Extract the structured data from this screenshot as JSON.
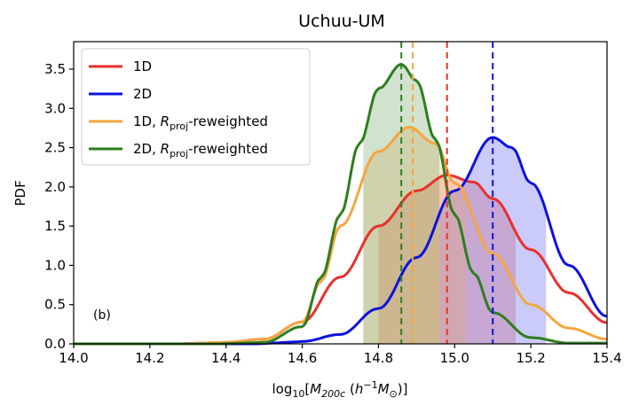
{
  "chart_data": {
    "type": "line",
    "title": "Uchuu-UM",
    "xlabel": "log10[M200c (h^-1 M⊙)]",
    "ylabel": "PDF",
    "xlim": [
      14.0,
      15.4
    ],
    "ylim": [
      0.0,
      3.85
    ],
    "xticks": [
      14.0,
      14.2,
      14.4,
      14.6,
      14.8,
      15.0,
      15.2,
      15.4
    ],
    "xtick_labels": [
      "14.0",
      "14.2",
      "14.4",
      "14.6",
      "14.8",
      "15.0",
      "15.2",
      "15.4"
    ],
    "yticks": [
      0.0,
      0.5,
      1.0,
      1.5,
      2.0,
      2.5,
      3.0,
      3.5
    ],
    "ytick_labels": [
      "0.0",
      "0.5",
      "1.0",
      "1.5",
      "2.0",
      "2.5",
      "3.0",
      "3.5"
    ],
    "annotation": "(b)",
    "legend_position": "top-left",
    "grid": false,
    "series": [
      {
        "name": "1D",
        "color": "#e8312b",
        "x": [
          14.4,
          14.5,
          14.6,
          14.7,
          14.8,
          14.9,
          14.98,
          15.05,
          15.1,
          15.2,
          15.3,
          15.4
        ],
        "y": [
          0.02,
          0.06,
          0.28,
          0.85,
          1.5,
          1.95,
          2.15,
          2.06,
          1.85,
          1.2,
          0.65,
          0.27
        ],
        "peak_x": 14.98,
        "interval": [
          14.8,
          15.16
        ]
      },
      {
        "name": "2D",
        "color": "#0d12e0",
        "x": [
          14.6,
          14.7,
          14.8,
          14.9,
          15.0,
          15.1,
          15.15,
          15.2,
          15.3,
          15.4
        ],
        "y": [
          0.03,
          0.12,
          0.45,
          1.1,
          1.95,
          2.63,
          2.5,
          2.05,
          1.0,
          0.35
        ],
        "peak_x": 15.1,
        "interval": [
          14.96,
          15.24
        ]
      },
      {
        "name": "1D, Rproj-reweighted",
        "color": "#f5a640",
        "x": [
          14.4,
          14.5,
          14.6,
          14.65,
          14.7,
          14.8,
          14.88,
          14.95,
          15.0,
          15.1,
          15.2,
          15.3,
          15.4
        ],
        "y": [
          0.02,
          0.06,
          0.28,
          0.8,
          1.5,
          2.45,
          2.76,
          2.55,
          2.05,
          1.15,
          0.5,
          0.2,
          0.06
        ],
        "peak_x": 14.89,
        "interval": [
          14.76,
          15.03
        ]
      },
      {
        "name": "2D, Rproj-reweighted",
        "color": "#2e7d1f",
        "x": [
          14.5,
          14.6,
          14.65,
          14.7,
          14.75,
          14.8,
          14.86,
          14.9,
          14.95,
          15.0,
          15.05,
          15.1,
          15.2,
          15.3
        ],
        "y": [
          0.02,
          0.22,
          0.85,
          1.65,
          2.55,
          3.25,
          3.56,
          3.35,
          2.6,
          1.65,
          0.9,
          0.4,
          0.08,
          0.01
        ],
        "peak_x": 14.86,
        "interval": [
          14.76,
          14.96
        ]
      }
    ]
  }
}
